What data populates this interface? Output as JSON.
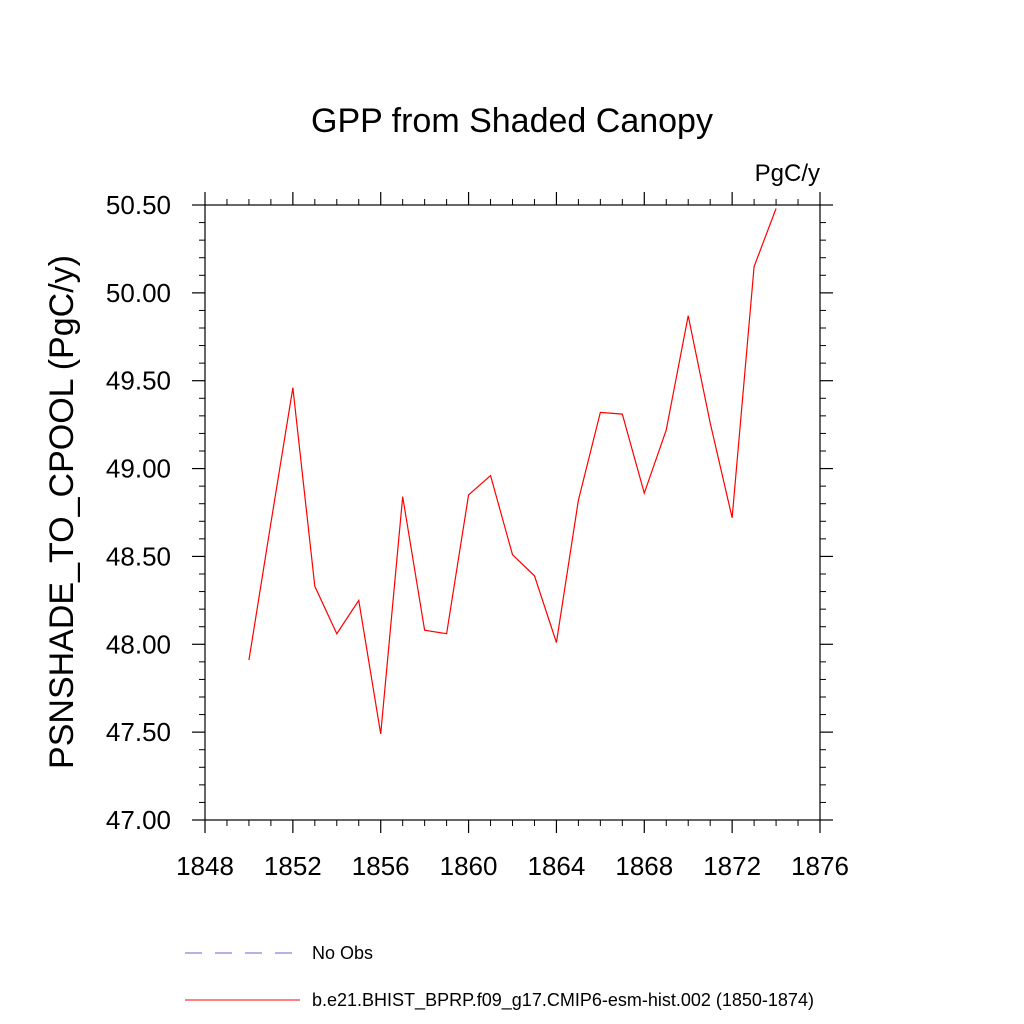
{
  "chart_data": {
    "type": "line",
    "title": "GPP from Shaded Canopy",
    "units_label": "PgC/y",
    "ylabel": "PSNSHADE_TO_CPOOL  (PgC/y)",
    "xlabel": "",
    "xlim": [
      1848,
      1876
    ],
    "ylim": [
      47.0,
      50.5
    ],
    "x_ticks": [
      "1848",
      "1852",
      "1856",
      "1860",
      "1864",
      "1868",
      "1872",
      "1876"
    ],
    "y_ticks": [
      "47.00",
      "47.50",
      "48.00",
      "48.50",
      "49.00",
      "49.50",
      "50.00",
      "50.50"
    ],
    "x": [
      1850,
      1851,
      1852,
      1853,
      1854,
      1855,
      1856,
      1857,
      1858,
      1859,
      1860,
      1861,
      1862,
      1863,
      1864,
      1865,
      1866,
      1867,
      1868,
      1869,
      1870,
      1871,
      1872,
      1873,
      1874
    ],
    "series": [
      {
        "name": "b.e21.BHIST_BPRP.f09_g17.CMIP6-esm-hist.002 (1850-1874)",
        "color": "#ff0000",
        "dash": "solid",
        "values": [
          47.91,
          48.69,
          49.46,
          48.33,
          48.06,
          48.25,
          47.49,
          48.84,
          48.08,
          48.06,
          48.85,
          48.96,
          48.51,
          48.39,
          48.01,
          48.82,
          49.32,
          49.31,
          48.86,
          49.22,
          49.87,
          49.26,
          48.72,
          50.15,
          50.48
        ]
      }
    ],
    "legend": {
      "placement": "bottom",
      "entries": [
        {
          "label": "No Obs",
          "color": "#6666cc",
          "dash": "dashed"
        },
        {
          "label": "b.e21.BHIST_BPRP.f09_g17.CMIP6-esm-hist.002 (1850-1874)",
          "color": "#ff0000",
          "dash": "solid"
        }
      ]
    },
    "grid": false
  }
}
